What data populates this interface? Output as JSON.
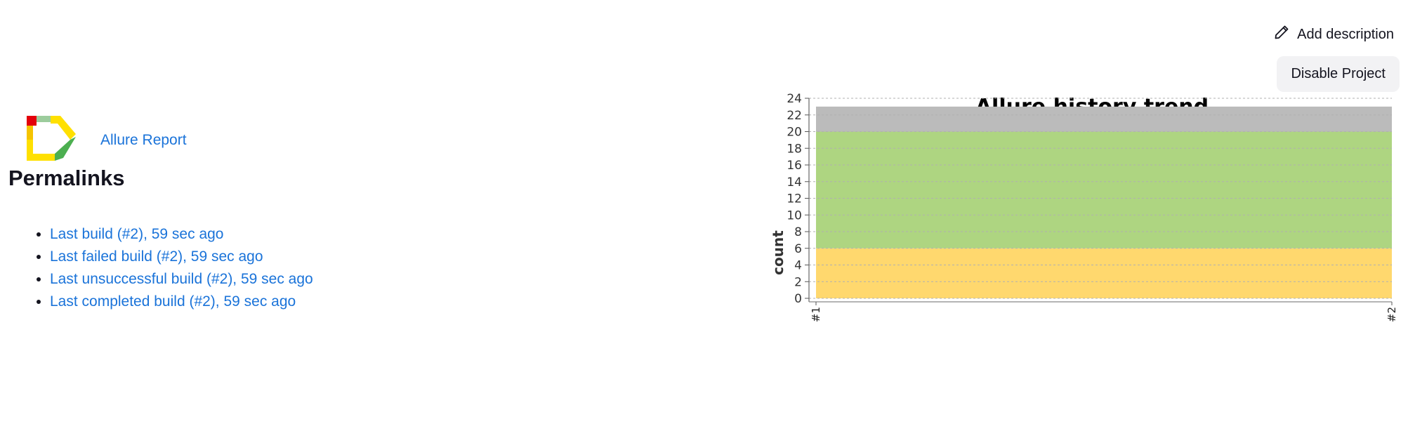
{
  "header": {
    "add_description_label": "Add description",
    "edit_icon": "pencil-icon",
    "disable_project_label": "Disable Project"
  },
  "allure": {
    "logo_icon": "allure-logo-icon",
    "link_label": "Allure Report"
  },
  "permalinks": {
    "title": "Permalinks",
    "items": [
      {
        "label": "Last build (#2), 59 sec ago"
      },
      {
        "label": "Last failed build (#2), 59 sec ago"
      },
      {
        "label": "Last unsuccessful build (#2), 59 sec ago"
      },
      {
        "label": "Last completed build (#2), 59 sec ago"
      }
    ]
  },
  "colors": {
    "link": "#1a73d9",
    "passed": "#aed581",
    "broken": "#ffd86e",
    "skipped": "#bbbbbb"
  },
  "chart_data": {
    "type": "area",
    "title": "Allure history trend",
    "xlabel": "",
    "ylabel": "count",
    "categories": [
      "#1",
      "#2"
    ],
    "ylim": [
      0,
      24
    ],
    "yticks": [
      0,
      2,
      4,
      6,
      8,
      10,
      12,
      14,
      16,
      18,
      20,
      22,
      24
    ],
    "grid": true,
    "stacked": true,
    "series": [
      {
        "values": [
          6,
          6
        ],
        "color": "#ffd86e"
      },
      {
        "values": [
          14,
          14
        ],
        "color": "#aed581"
      },
      {
        "values": [
          3,
          3
        ],
        "color": "#bbbbbb"
      }
    ]
  }
}
